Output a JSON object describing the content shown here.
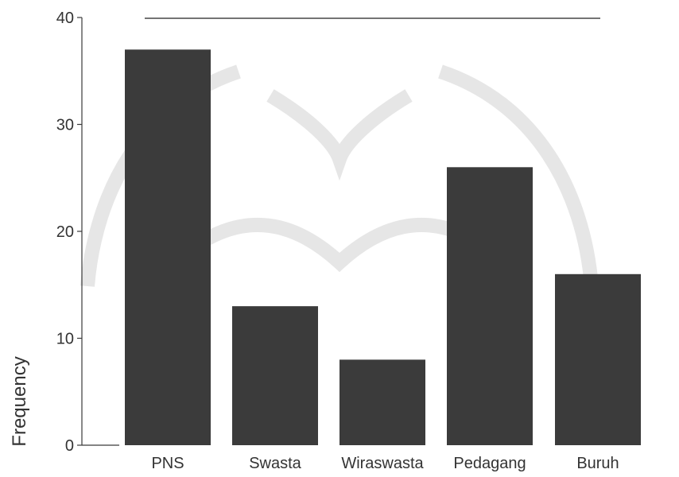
{
  "chart_data": {
    "type": "bar",
    "categories": [
      "PNS",
      "Swasta",
      "Wiraswasta",
      "Pedagang",
      "Buruh"
    ],
    "values": [
      37,
      13,
      8,
      26,
      16
    ],
    "title": "",
    "xlabel": "",
    "ylabel": "Frequency",
    "ylim": [
      0,
      40
    ],
    "yticks": [
      0,
      10,
      20,
      30,
      40
    ],
    "grid": false,
    "legend": "none",
    "bar_color": "#3b3b3b"
  }
}
